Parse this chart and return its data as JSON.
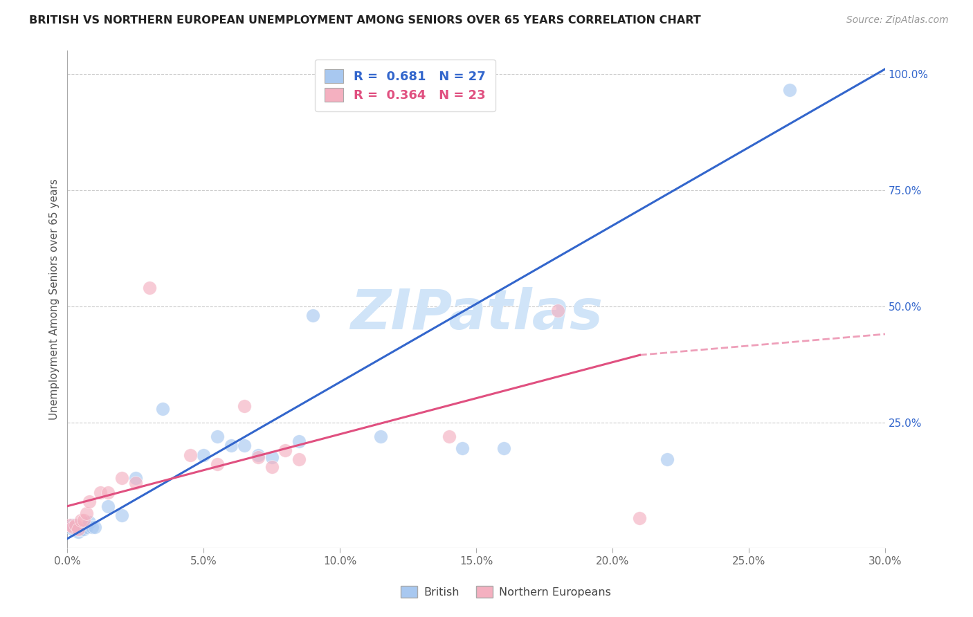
{
  "title": "BRITISH VS NORTHERN EUROPEAN UNEMPLOYMENT AMONG SENIORS OVER 65 YEARS CORRELATION CHART",
  "source": "Source: ZipAtlas.com",
  "ylabel": "Unemployment Among Seniors over 65 years",
  "x_ticks": [
    "0.0%",
    "5.0%",
    "10.0%",
    "15.0%",
    "20.0%",
    "25.0%",
    "30.0%"
  ],
  "x_tick_vals": [
    0.0,
    0.05,
    0.1,
    0.15,
    0.2,
    0.25,
    0.3
  ],
  "y_ticks_right": [
    "25.0%",
    "50.0%",
    "75.0%",
    "100.0%"
  ],
  "y_tick_vals_right": [
    0.25,
    0.5,
    0.75,
    1.0
  ],
  "xlim": [
    0.0,
    0.3
  ],
  "ylim": [
    -0.02,
    1.05
  ],
  "legend_british": "R =  0.681   N = 27",
  "legend_northern": "R =  0.364   N = 23",
  "british_color": "#a8c8f0",
  "northern_color": "#f4b0c0",
  "trend_british_color": "#3366cc",
  "trend_northern_color": "#e05080",
  "trend_british_x0": 0.0,
  "trend_british_y0": 0.0,
  "trend_british_x1": 0.3,
  "trend_british_y1": 1.01,
  "trend_northern_x0": 0.0,
  "trend_northern_y0": 0.07,
  "trend_northern_x1": 0.21,
  "trend_northern_y1": 0.395,
  "trend_northern_dash_x0": 0.21,
  "trend_northern_dash_y0": 0.395,
  "trend_northern_dash_x1": 0.3,
  "trend_northern_dash_y1": 0.44,
  "british_points_x": [
    0.002,
    0.002,
    0.003,
    0.004,
    0.005,
    0.006,
    0.007,
    0.008,
    0.009,
    0.01,
    0.015,
    0.02,
    0.025,
    0.035,
    0.05,
    0.055,
    0.06,
    0.065,
    0.07,
    0.075,
    0.085,
    0.09,
    0.115,
    0.145,
    0.16,
    0.22,
    0.265
  ],
  "british_points_y": [
    0.02,
    0.03,
    0.025,
    0.015,
    0.02,
    0.02,
    0.025,
    0.035,
    0.025,
    0.025,
    0.07,
    0.05,
    0.13,
    0.28,
    0.18,
    0.22,
    0.2,
    0.2,
    0.18,
    0.175,
    0.21,
    0.48,
    0.22,
    0.195,
    0.195,
    0.17,
    0.965
  ],
  "northern_points_x": [
    0.001,
    0.002,
    0.003,
    0.004,
    0.005,
    0.006,
    0.007,
    0.008,
    0.012,
    0.015,
    0.02,
    0.025,
    0.03,
    0.045,
    0.055,
    0.065,
    0.07,
    0.075,
    0.08,
    0.085,
    0.14,
    0.18,
    0.21
  ],
  "northern_points_y": [
    0.03,
    0.025,
    0.03,
    0.02,
    0.04,
    0.04,
    0.055,
    0.08,
    0.1,
    0.1,
    0.13,
    0.12,
    0.54,
    0.18,
    0.16,
    0.285,
    0.175,
    0.155,
    0.19,
    0.17,
    0.22,
    0.49,
    0.045
  ],
  "background_color": "#ffffff",
  "grid_color": "#cccccc",
  "watermark_text": "ZIPatlas",
  "watermark_color": "#d0e4f8",
  "scatter_size": 200,
  "scatter_alpha": 0.65
}
